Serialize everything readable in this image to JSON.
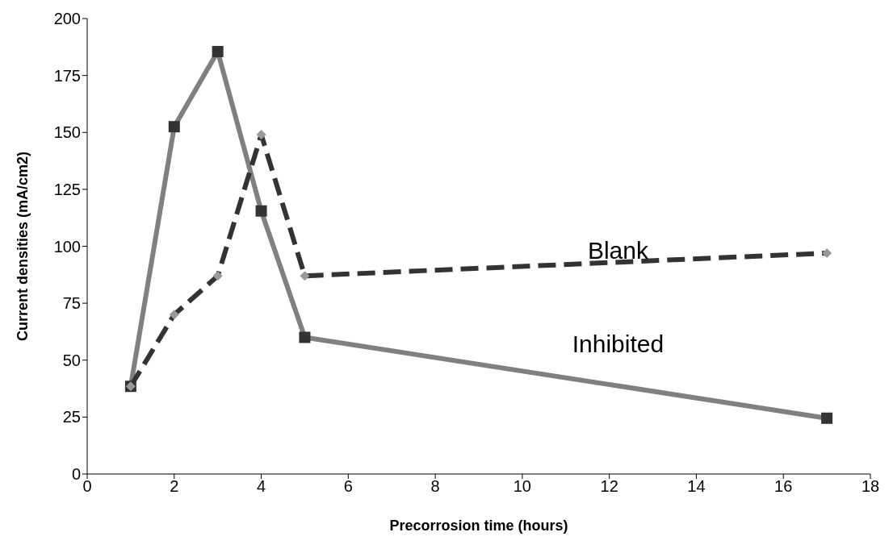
{
  "chart_data": {
    "type": "line",
    "xlabel": "Precorrosion time (hours)",
    "ylabel": "Current densities (mA/cm2)",
    "x": [
      1,
      2,
      3,
      4,
      5,
      17
    ],
    "series": [
      {
        "name": "Inhibited",
        "color": "#808080",
        "colors": [
          "#333333",
          "#333333",
          "#333333",
          "#333333",
          "#333333",
          "#333333"
        ],
        "values": [
          38.5,
          152.5,
          185.5,
          115.5,
          60,
          24.5
        ],
        "marker": "square",
        "line_style": "solid"
      },
      {
        "name": "Blank",
        "color": "#333333",
        "colors": [
          "#999999",
          "#999999",
          "#999999",
          "#999999",
          "#999999",
          "#999999"
        ],
        "values": [
          38.5,
          70,
          87,
          149,
          87,
          97
        ],
        "marker": "diamond",
        "line_style": "dashed"
      }
    ],
    "xlim": [
      0,
      18
    ],
    "xticks": [
      0,
      2,
      4,
      6,
      8,
      10,
      12,
      14,
      16,
      18
    ],
    "ylim": [
      0,
      200
    ],
    "yticks": [
      0,
      25,
      50,
      75,
      100,
      125,
      150,
      175,
      200
    ],
    "grid": false,
    "legend": false
  }
}
